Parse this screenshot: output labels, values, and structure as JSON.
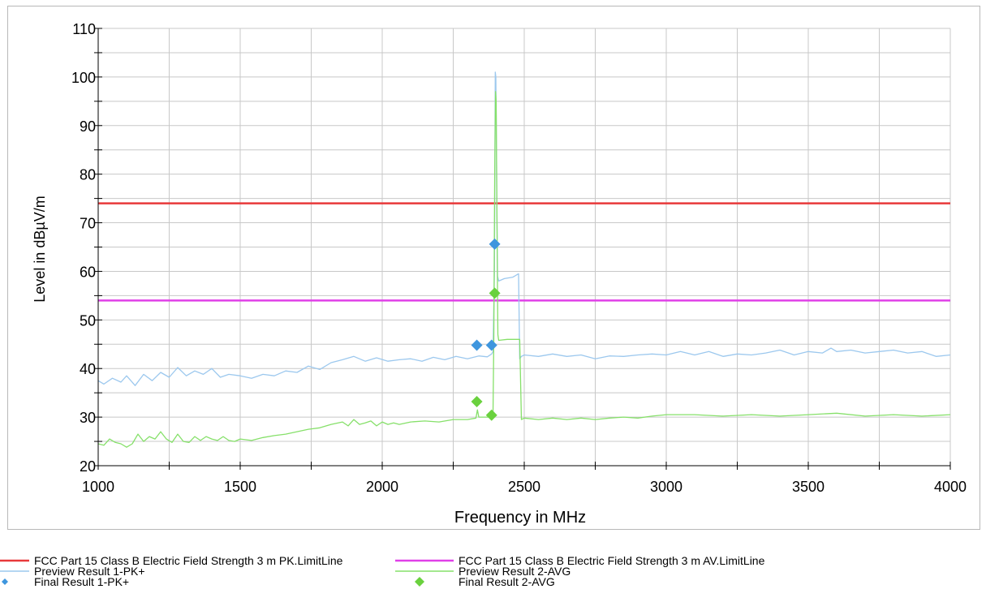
{
  "chart_data": {
    "type": "line",
    "xlabel": "Frequency in MHz",
    "ylabel": "Level in dBµV/m",
    "xlim": [
      1000,
      4000
    ],
    "ylim": [
      20,
      110
    ],
    "x_ticks": [
      1000,
      1500,
      2000,
      2500,
      3000,
      3500,
      4000
    ],
    "y_ticks": [
      20,
      30,
      40,
      50,
      60,
      70,
      80,
      90,
      100,
      110
    ],
    "grid": true,
    "legend_position": "bottom",
    "limit_lines": [
      {
        "name": "FCC Part 15 Class B Electric Field Strength 3 m PK.LimitLine",
        "color": "#e8393a",
        "y": 74
      },
      {
        "name": "FCC Part 15 Class B Electric Field Strength 3 m AV.LimitLine",
        "color": "#e040e8",
        "y": 54
      }
    ],
    "series": [
      {
        "name": "Preview Result 1-PK+",
        "color": "#9cc8ee",
        "x": [
          1000,
          1020,
          1050,
          1080,
          1100,
          1130,
          1160,
          1190,
          1220,
          1250,
          1280,
          1310,
          1340,
          1370,
          1400,
          1430,
          1460,
          1500,
          1540,
          1580,
          1620,
          1660,
          1700,
          1740,
          1780,
          1820,
          1860,
          1900,
          1940,
          1980,
          2020,
          2060,
          2100,
          2140,
          2180,
          2220,
          2260,
          2300,
          2340,
          2370,
          2385,
          2390,
          2395,
          2398,
          2400,
          2403,
          2406,
          2410,
          2430,
          2460,
          2480,
          2484,
          2490,
          2500,
          2550,
          2600,
          2650,
          2700,
          2750,
          2800,
          2850,
          2900,
          2950,
          3000,
          3050,
          3100,
          3150,
          3200,
          3250,
          3300,
          3350,
          3400,
          3450,
          3500,
          3550,
          3580,
          3600,
          3650,
          3700,
          3750,
          3800,
          3850,
          3900,
          3950,
          4000
        ],
        "values": [
          37.5,
          36.8,
          38.0,
          37.2,
          38.5,
          36.5,
          38.8,
          37.5,
          39.2,
          38.2,
          40.2,
          38.5,
          39.5,
          38.8,
          40.0,
          38.2,
          38.8,
          38.5,
          38.0,
          38.8,
          38.5,
          39.5,
          39.2,
          40.5,
          39.8,
          41.2,
          41.8,
          42.5,
          41.5,
          42.2,
          41.5,
          41.8,
          42.0,
          41.5,
          42.3,
          41.8,
          42.5,
          42.0,
          42.6,
          42.4,
          43.0,
          43.5,
          60.0,
          101.0,
          100.0,
          80.0,
          59.0,
          58.0,
          58.5,
          58.8,
          59.5,
          42.0,
          42.5,
          42.8,
          42.5,
          43.0,
          42.5,
          42.8,
          42.0,
          42.6,
          42.5,
          42.8,
          43.0,
          42.8,
          43.5,
          42.8,
          43.5,
          42.5,
          43.0,
          42.8,
          43.2,
          43.8,
          42.8,
          43.5,
          43.2,
          44.2,
          43.5,
          43.8,
          43.2,
          43.5,
          43.8,
          43.2,
          43.5,
          42.5,
          42.8
        ]
      },
      {
        "name": "Preview Result 2-AVG",
        "color": "#86e06a",
        "x": [
          1000,
          1020,
          1040,
          1060,
          1080,
          1100,
          1120,
          1140,
          1160,
          1180,
          1200,
          1220,
          1240,
          1260,
          1280,
          1300,
          1320,
          1340,
          1360,
          1380,
          1400,
          1420,
          1440,
          1460,
          1480,
          1500,
          1540,
          1580,
          1620,
          1660,
          1700,
          1740,
          1780,
          1820,
          1860,
          1880,
          1900,
          1920,
          1940,
          1960,
          1980,
          2000,
          2020,
          2040,
          2060,
          2100,
          2150,
          2200,
          2250,
          2300,
          2330,
          2335,
          2340,
          2380,
          2390,
          2393,
          2396,
          2399,
          2401,
          2404,
          2407,
          2410,
          2440,
          2470,
          2484,
          2490,
          2500,
          2550,
          2600,
          2650,
          2700,
          2750,
          2800,
          2850,
          2900,
          2950,
          3000,
          3100,
          3200,
          3300,
          3400,
          3500,
          3600,
          3700,
          3800,
          3900,
          4000
        ],
        "values": [
          24.5,
          24.2,
          25.5,
          24.8,
          24.5,
          23.8,
          24.5,
          26.5,
          25.0,
          26.0,
          25.5,
          27.0,
          25.5,
          24.8,
          26.5,
          25.0,
          24.8,
          26.0,
          25.2,
          26.0,
          25.5,
          25.2,
          26.0,
          25.2,
          25.0,
          25.5,
          25.2,
          25.8,
          26.2,
          26.5,
          27.0,
          27.5,
          27.8,
          28.5,
          29.0,
          28.2,
          29.5,
          28.5,
          28.8,
          29.2,
          28.2,
          29.0,
          28.5,
          28.8,
          28.5,
          29.0,
          29.2,
          29.0,
          29.5,
          29.5,
          29.8,
          31.5,
          30.0,
          30.0,
          30.5,
          46.0,
          80.0,
          97.0,
          95.0,
          70.0,
          47.0,
          45.8,
          46.0,
          46.0,
          46.0,
          29.5,
          29.8,
          29.5,
          29.8,
          29.5,
          29.8,
          29.5,
          29.8,
          30.0,
          29.8,
          30.2,
          30.5,
          30.5,
          30.2,
          30.5,
          30.2,
          30.5,
          30.8,
          30.2,
          30.5,
          30.2,
          30.5
        ]
      }
    ],
    "final_results": [
      {
        "name": "Final Result 1-PK+",
        "color": "#3e96de",
        "points": [
          [
            2333,
            44.8
          ],
          [
            2385,
            44.8
          ],
          [
            2396,
            65.6
          ]
        ]
      },
      {
        "name": "Final Result 2-AVG",
        "color": "#6ad13e",
        "points": [
          [
            2333,
            33.2
          ],
          [
            2385,
            30.4
          ],
          [
            2396,
            55.5
          ]
        ]
      }
    ]
  },
  "legend": {
    "pk_limit": "FCC Part 15 Class B Electric Field Strength 3 m PK.LimitLine",
    "av_limit": "FCC Part 15 Class B Electric Field Strength 3 m AV.LimitLine",
    "preview_pk": "Preview Result 1-PK+",
    "preview_avg": "Preview Result 2-AVG",
    "final_pk": "Final Result 1-PK+",
    "final_avg": "Final Result 2-AVG"
  }
}
